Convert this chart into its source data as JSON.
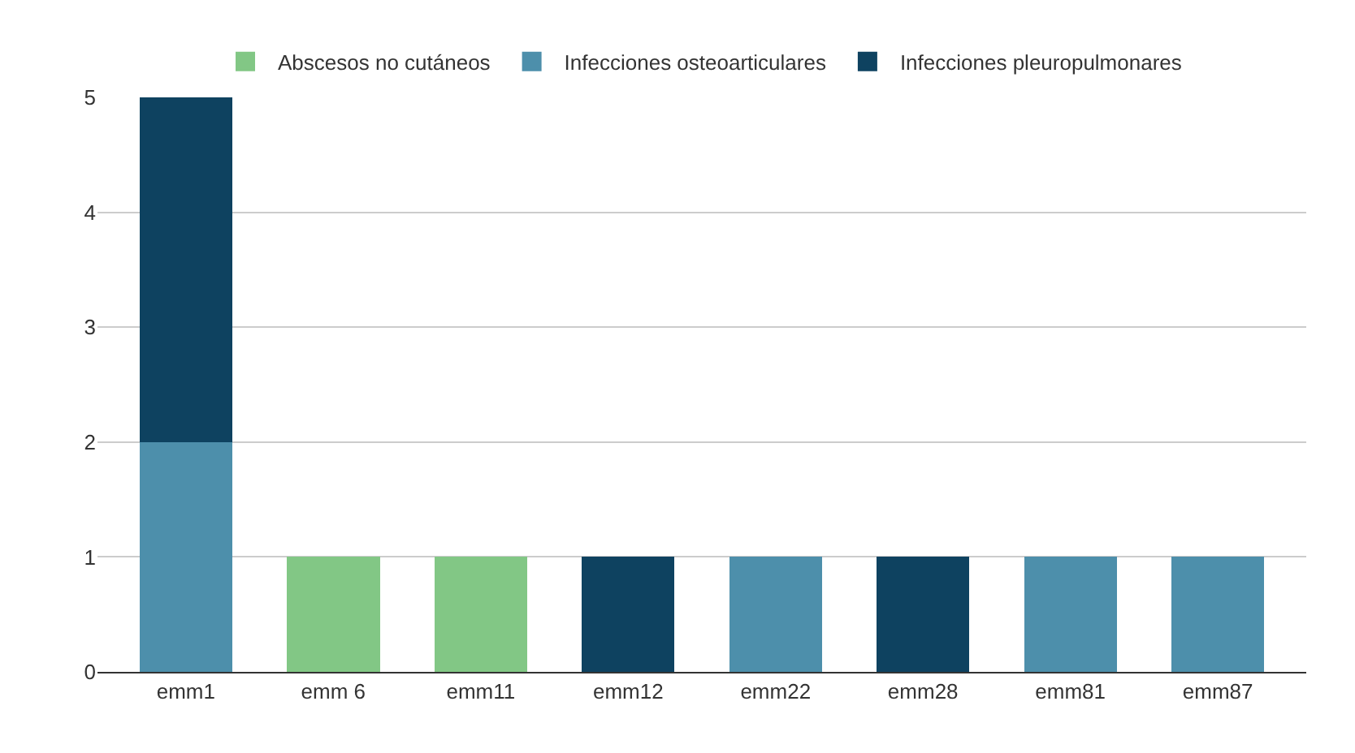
{
  "chart_data": {
    "type": "bar",
    "stacked": true,
    "categories": [
      "emm1",
      "emm 6",
      "emm11",
      "emm12",
      "emm22",
      "emm28",
      "emm81",
      "emm87"
    ],
    "series": [
      {
        "name": "Abscesos no cutáneos",
        "color": "#82c785",
        "values": [
          null,
          1,
          1,
          null,
          null,
          null,
          null,
          null
        ]
      },
      {
        "name": "Infecciones osteoarticulares",
        "color": "#4d8fab",
        "values": [
          2,
          null,
          null,
          null,
          1,
          null,
          1,
          1
        ]
      },
      {
        "name": "Infecciones pleuropulmonares",
        "color": "#0e4260",
        "values": [
          3,
          null,
          null,
          1,
          null,
          1,
          null,
          null
        ]
      }
    ],
    "ylim": [
      0,
      5
    ],
    "yticks": [
      0,
      1,
      2,
      3,
      4,
      5
    ],
    "grid": "y",
    "legend": "top"
  }
}
